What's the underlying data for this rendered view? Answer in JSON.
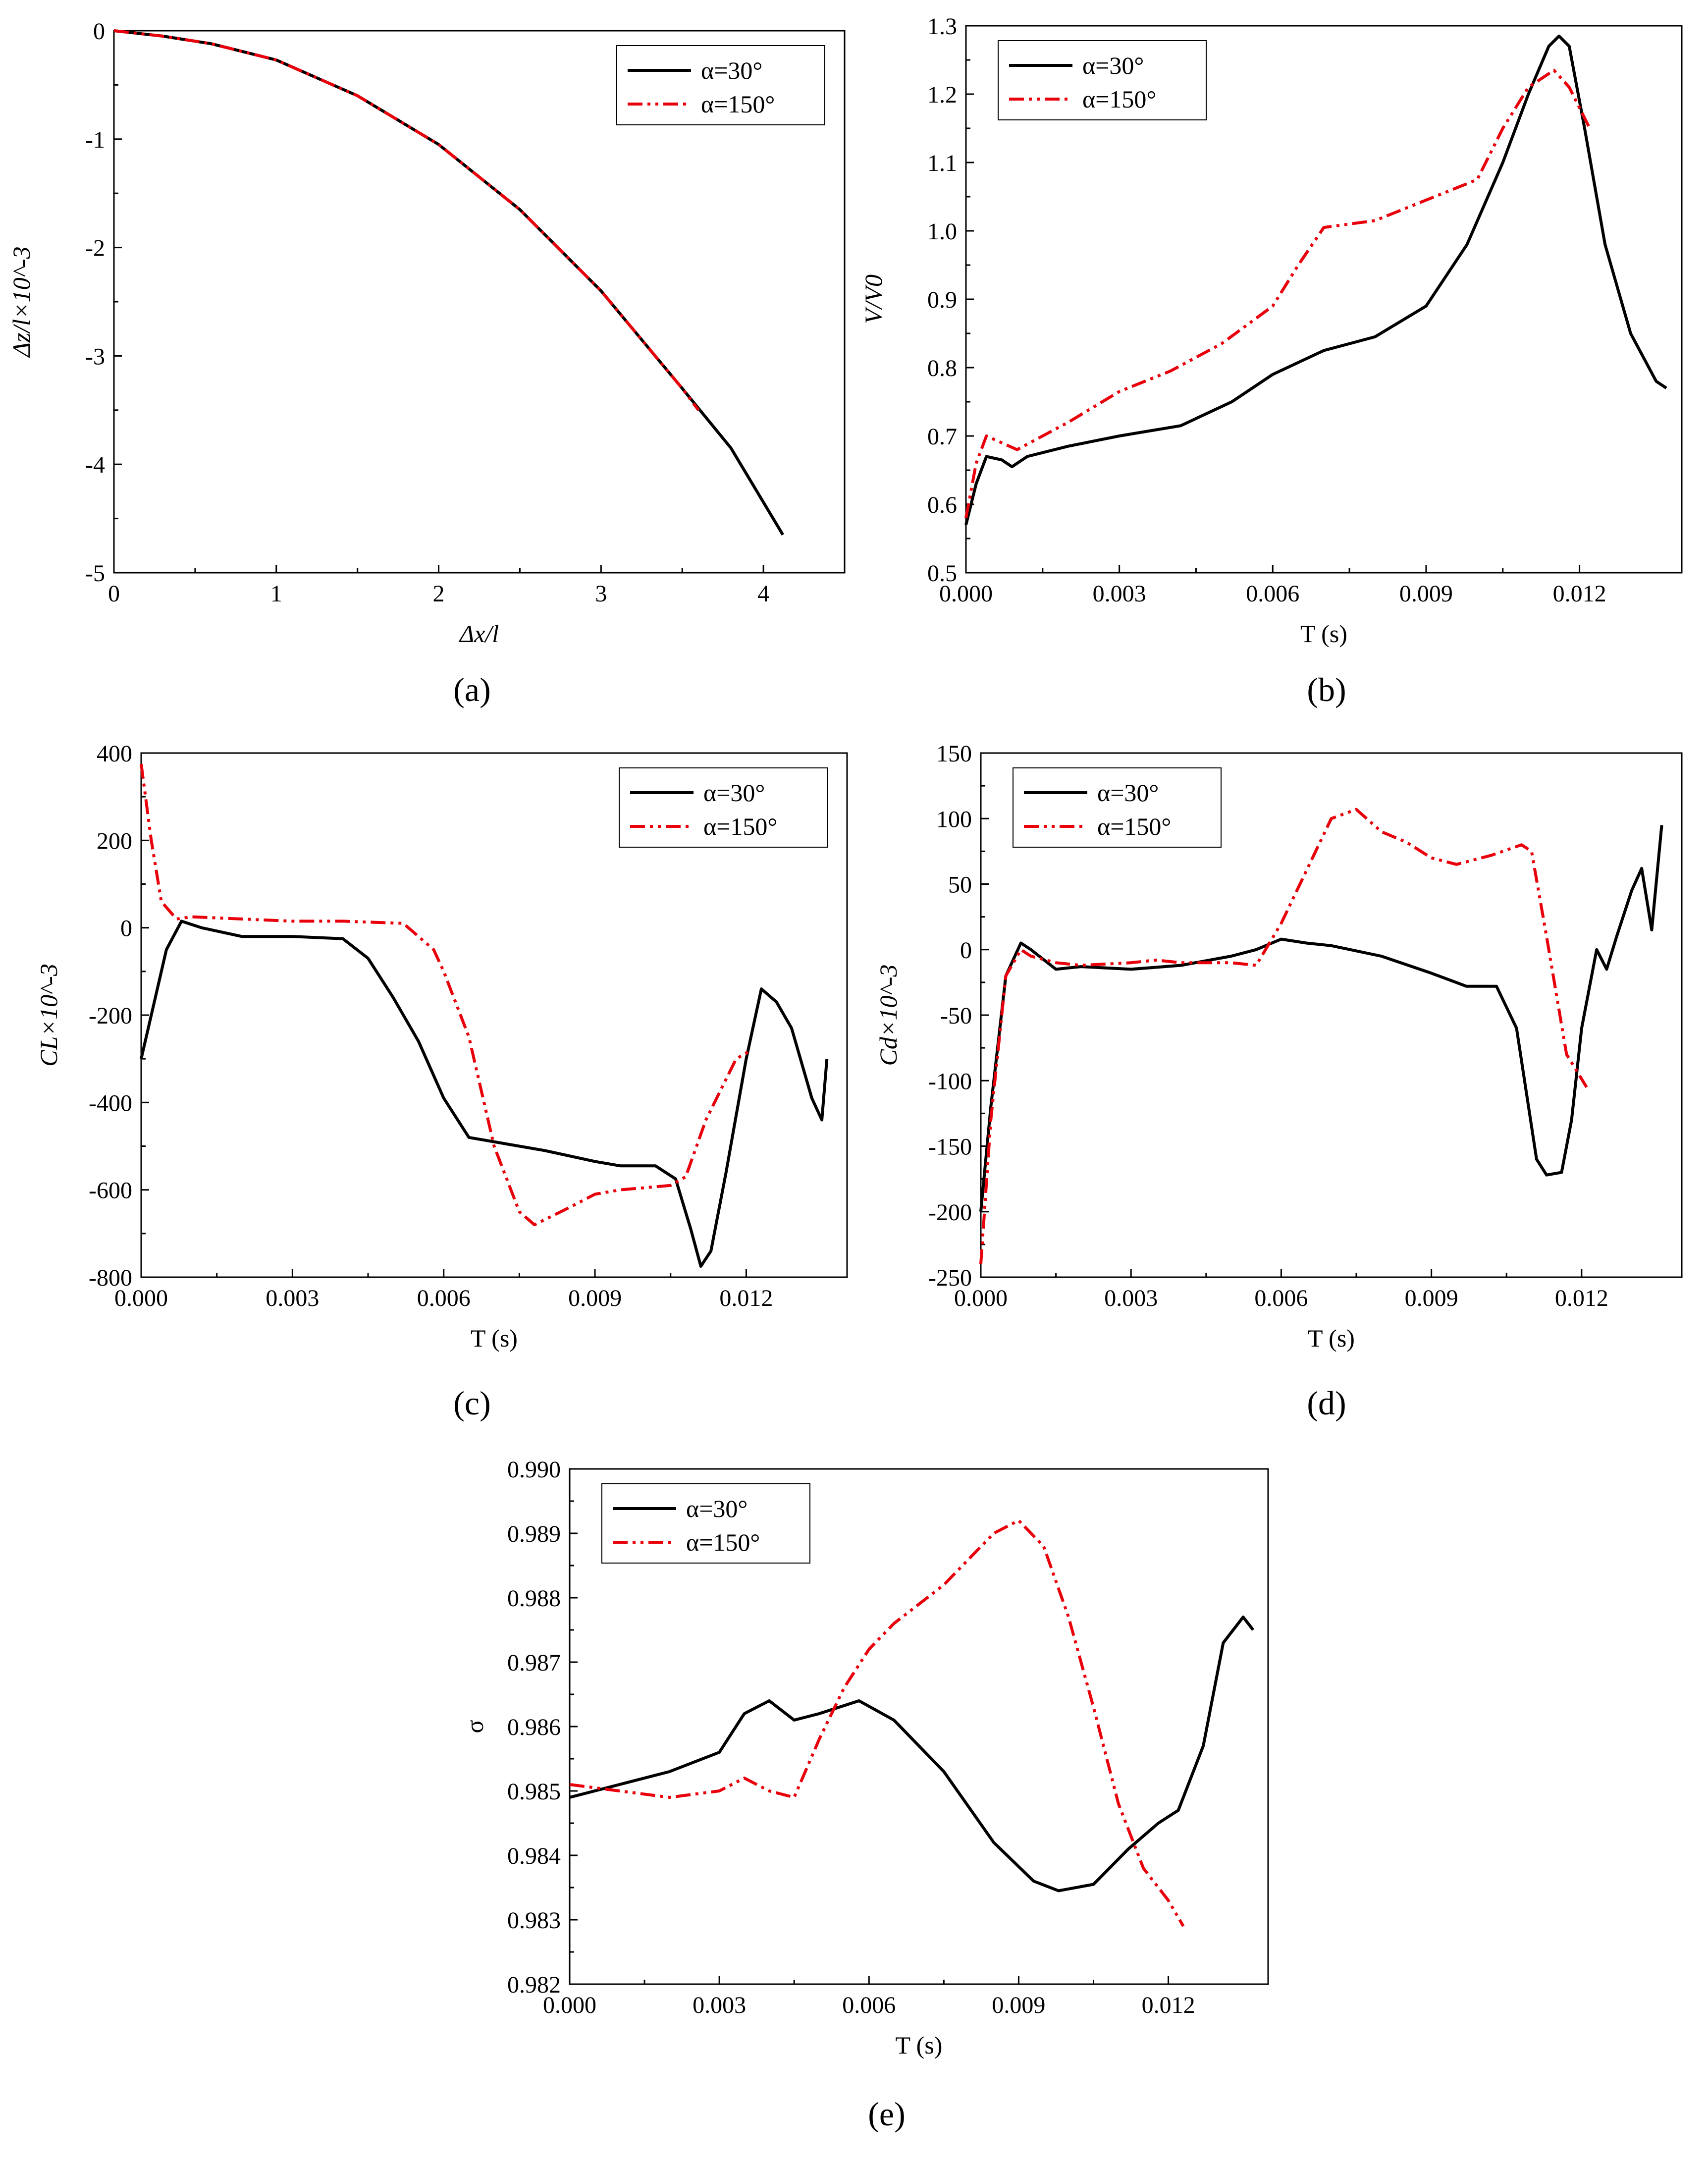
{
  "figure": {
    "panel_labels": [
      "(a)",
      "(b)",
      "(c)",
      "(d)",
      "(e)"
    ]
  },
  "chart_data": [
    {
      "id": "a",
      "panel_label": "(a)",
      "type": "line",
      "xlabel": "Δx/l",
      "ylabel": "Δz/l×10^-3",
      "xlim": [
        0,
        4.5
      ],
      "ylim": [
        -5,
        0
      ],
      "xticks": [
        0,
        1,
        2,
        3,
        4
      ],
      "xtick_labels": [
        "0",
        "1",
        "2",
        "3",
        "4"
      ],
      "yticks": [
        0,
        -1,
        -2,
        -3,
        -4,
        -5
      ],
      "ytick_labels": [
        "0",
        "-1",
        "-2",
        "-3",
        "-4",
        "-5"
      ],
      "legend_position": "top-right",
      "series": [
        {
          "name": "α=30°",
          "color": "#000000",
          "dash": "solid",
          "x": [
            0,
            0.3,
            0.6,
            1.0,
            1.5,
            2.0,
            2.5,
            3.0,
            3.5,
            3.8,
            4.12
          ],
          "y": [
            0,
            -0.05,
            -0.12,
            -0.27,
            -0.6,
            -1.05,
            -1.65,
            -2.4,
            -3.3,
            -3.85,
            -4.65
          ]
        },
        {
          "name": "α=150°",
          "color": "#e8000b",
          "dash": "dashdotdot",
          "x": [
            0,
            0.3,
            0.6,
            1.0,
            1.5,
            2.0,
            2.5,
            3.0,
            3.5,
            3.6
          ],
          "y": [
            0,
            -0.05,
            -0.12,
            -0.27,
            -0.6,
            -1.05,
            -1.65,
            -2.4,
            -3.3,
            -3.5
          ]
        }
      ]
    },
    {
      "id": "b",
      "panel_label": "(b)",
      "type": "line",
      "xlabel": "T (s)",
      "ylabel": "V/V0",
      "xlim": [
        0,
        0.014
      ],
      "ylim": [
        0.5,
        1.3
      ],
      "xticks": [
        0,
        0.003,
        0.006,
        0.009,
        0.012
      ],
      "xtick_labels": [
        "0.000",
        "0.003",
        "0.006",
        "0.009",
        "0.012"
      ],
      "yticks": [
        0.5,
        0.6,
        0.7,
        0.8,
        0.9,
        1.0,
        1.1,
        1.2,
        1.3
      ],
      "ytick_labels": [
        "0.5",
        "0.6",
        "0.7",
        "0.8",
        "0.9",
        "1.0",
        "1.1",
        "1.2",
        "1.3"
      ],
      "legend_position": "top-left",
      "series": [
        {
          "name": "α=30°",
          "color": "#000000",
          "dash": "solid",
          "x": [
            0,
            0.0002,
            0.0004,
            0.0007,
            0.0009,
            0.0012,
            0.002,
            0.003,
            0.0042,
            0.0052,
            0.006,
            0.007,
            0.008,
            0.009,
            0.0098,
            0.0105,
            0.011,
            0.0114,
            0.0116,
            0.0118,
            0.0121,
            0.0125,
            0.013,
            0.0135,
            0.0137
          ],
          "y": [
            0.57,
            0.63,
            0.67,
            0.665,
            0.655,
            0.67,
            0.685,
            0.7,
            0.715,
            0.75,
            0.79,
            0.825,
            0.845,
            0.89,
            0.98,
            1.1,
            1.2,
            1.27,
            1.285,
            1.27,
            1.15,
            0.98,
            0.85,
            0.78,
            0.77
          ]
        },
        {
          "name": "α=150°",
          "color": "#e8000b",
          "dash": "dashdotdot",
          "x": [
            0,
            0.0002,
            0.0004,
            0.0007,
            0.001,
            0.002,
            0.003,
            0.004,
            0.005,
            0.006,
            0.0065,
            0.007,
            0.008,
            0.009,
            0.01,
            0.0105,
            0.011,
            0.0115,
            0.0118,
            0.0122
          ],
          "y": [
            0.58,
            0.66,
            0.7,
            0.69,
            0.68,
            0.72,
            0.765,
            0.795,
            0.835,
            0.89,
            0.95,
            1.005,
            1.015,
            1.045,
            1.075,
            1.15,
            1.21,
            1.235,
            1.21,
            1.15
          ]
        }
      ]
    },
    {
      "id": "c",
      "panel_label": "(c)",
      "type": "line",
      "xlabel": "T (s)",
      "ylabel": "CL×10^-3",
      "xlim": [
        0,
        0.014
      ],
      "ylim": [
        -800,
        400
      ],
      "xticks": [
        0,
        0.003,
        0.006,
        0.009,
        0.012
      ],
      "xtick_labels": [
        "0.000",
        "0.003",
        "0.006",
        "0.009",
        "0.012"
      ],
      "yticks": [
        400,
        200,
        0,
        -200,
        -400,
        -600,
        -800
      ],
      "ytick_labels": [
        "400",
        "200",
        "0",
        "-200",
        "-400",
        "-600",
        "-800"
      ],
      "legend_position": "top-right",
      "series": [
        {
          "name": "α=30°",
          "color": "#000000",
          "dash": "solid",
          "x": [
            0,
            0.0002,
            0.0005,
            0.0008,
            0.0012,
            0.002,
            0.003,
            0.004,
            0.0045,
            0.005,
            0.0055,
            0.006,
            0.0065,
            0.007,
            0.008,
            0.009,
            0.0095,
            0.0102,
            0.0106,
            0.0109,
            0.0111,
            0.0113,
            0.0116,
            0.012,
            0.0123,
            0.0126,
            0.0129,
            0.0133,
            0.0135,
            0.0136
          ],
          "y": [
            -300,
            -200,
            -50,
            15,
            0,
            -20,
            -20,
            -25,
            -70,
            -160,
            -260,
            -390,
            -480,
            -490,
            -510,
            -535,
            -545,
            -545,
            -575,
            -690,
            -775,
            -740,
            -560,
            -300,
            -140,
            -170,
            -230,
            -390,
            -440,
            -300
          ]
        },
        {
          "name": "α=150°",
          "color": "#e8000b",
          "dash": "dashdotdot",
          "x": [
            0,
            0.0002,
            0.0004,
            0.0007,
            0.001,
            0.002,
            0.003,
            0.004,
            0.0052,
            0.0058,
            0.006,
            0.0065,
            0.007,
            0.0075,
            0.0078,
            0.0085,
            0.009,
            0.0095,
            0.01,
            0.0105,
            0.0108,
            0.0112,
            0.0118,
            0.0121
          ],
          "y": [
            375,
            200,
            60,
            20,
            25,
            20,
            15,
            15,
            10,
            -50,
            -100,
            -250,
            -500,
            -650,
            -680,
            -640,
            -610,
            -600,
            -595,
            -590,
            -570,
            -440,
            -300,
            -280
          ]
        }
      ]
    },
    {
      "id": "d",
      "panel_label": "(d)",
      "type": "line",
      "xlabel": "T (s)",
      "ylabel": "Cd×10^-3",
      "xlim": [
        0,
        0.014
      ],
      "ylim": [
        -250,
        150
      ],
      "xticks": [
        0,
        0.003,
        0.006,
        0.009,
        0.012
      ],
      "xtick_labels": [
        "0.000",
        "0.003",
        "0.006",
        "0.009",
        "0.012"
      ],
      "yticks": [
        150,
        100,
        50,
        0,
        -50,
        -100,
        -150,
        -200,
        -250
      ],
      "ytick_labels": [
        "150",
        "100",
        "50",
        "0",
        "-50",
        "-100",
        "-150",
        "-200",
        "-250"
      ],
      "legend_position": "top-left",
      "series": [
        {
          "name": "α=30°",
          "color": "#000000",
          "dash": "solid",
          "x": [
            0,
            0.0002,
            0.0005,
            0.0008,
            0.001,
            0.0015,
            0.002,
            0.003,
            0.004,
            0.005,
            0.0055,
            0.006,
            0.0065,
            0.007,
            0.008,
            0.009,
            0.0097,
            0.0103,
            0.0107,
            0.0109,
            0.0111,
            0.0113,
            0.0116,
            0.0118,
            0.012,
            0.0123,
            0.0125,
            0.0127,
            0.013,
            0.0132,
            0.0134,
            0.0136
          ],
          "y": [
            -200,
            -120,
            -20,
            5,
            0,
            -15,
            -13,
            -15,
            -12,
            -5,
            0,
            8,
            5,
            3,
            -5,
            -18,
            -28,
            -28,
            -60,
            -110,
            -160,
            -172,
            -170,
            -130,
            -60,
            0,
            -15,
            10,
            45,
            62,
            15,
            95
          ]
        },
        {
          "name": "α=150°",
          "color": "#e8000b",
          "dash": "dashdotdot",
          "x": [
            0,
            0.0002,
            0.0005,
            0.0008,
            0.001,
            0.0015,
            0.002,
            0.003,
            0.0035,
            0.004,
            0.005,
            0.0055,
            0.006,
            0.0065,
            0.007,
            0.0075,
            0.008,
            0.0085,
            0.009,
            0.0095,
            0.0102,
            0.0108,
            0.011,
            0.0113,
            0.0117,
            0.0121
          ],
          "y": [
            -240,
            -130,
            -20,
            0,
            -5,
            -10,
            -12,
            -10,
            -8,
            -10,
            -10,
            -12,
            20,
            60,
            100,
            107,
            90,
            82,
            70,
            65,
            72,
            80,
            75,
            10,
            -80,
            -105
          ]
        }
      ]
    },
    {
      "id": "e",
      "panel_label": "(e)",
      "type": "line",
      "xlabel": "T (s)",
      "ylabel": "σ",
      "xlim": [
        0,
        0.014
      ],
      "ylim": [
        0.982,
        0.99
      ],
      "xticks": [
        0,
        0.003,
        0.006,
        0.009,
        0.012
      ],
      "xtick_labels": [
        "0.000",
        "0.003",
        "0.006",
        "0.009",
        "0.012"
      ],
      "yticks": [
        0.982,
        0.983,
        0.984,
        0.985,
        0.986,
        0.987,
        0.988,
        0.989,
        0.99
      ],
      "ytick_labels": [
        "0.982",
        "0.983",
        "0.984",
        "0.985",
        "0.986",
        "0.987",
        "0.988",
        "0.989",
        "0.990"
      ],
      "legend_position": "top-left",
      "series": [
        {
          "name": "α=30°",
          "color": "#000000",
          "dash": "solid",
          "x": [
            0,
            0.001,
            0.002,
            0.003,
            0.0035,
            0.004,
            0.0045,
            0.005,
            0.0058,
            0.0065,
            0.0075,
            0.0085,
            0.0093,
            0.0098,
            0.0105,
            0.0112,
            0.0118,
            0.0122,
            0.0127,
            0.0131,
            0.0135,
            0.0137
          ],
          "y": [
            0.9849,
            0.9851,
            0.9853,
            0.9856,
            0.9862,
            0.9864,
            0.9861,
            0.9862,
            0.9864,
            0.9861,
            0.9853,
            0.9842,
            0.9836,
            0.98345,
            0.98355,
            0.9841,
            0.9845,
            0.9847,
            0.9857,
            0.9873,
            0.9877,
            0.9875
          ]
        },
        {
          "name": "α=150°",
          "color": "#e8000b",
          "dash": "dashdotdot",
          "x": [
            0,
            0.001,
            0.002,
            0.003,
            0.0035,
            0.004,
            0.0045,
            0.005,
            0.0055,
            0.006,
            0.0065,
            0.007,
            0.0075,
            0.008,
            0.0085,
            0.009,
            0.0095,
            0.01,
            0.0105,
            0.011,
            0.0115,
            0.012,
            0.0123
          ],
          "y": [
            0.9851,
            0.985,
            0.9849,
            0.985,
            0.9852,
            0.985,
            0.9849,
            0.9858,
            0.9866,
            0.9872,
            0.9876,
            0.9879,
            0.9882,
            0.9886,
            0.989,
            0.9892,
            0.9888,
            0.9877,
            0.9863,
            0.9848,
            0.9838,
            0.9833,
            0.9829
          ]
        }
      ]
    }
  ]
}
